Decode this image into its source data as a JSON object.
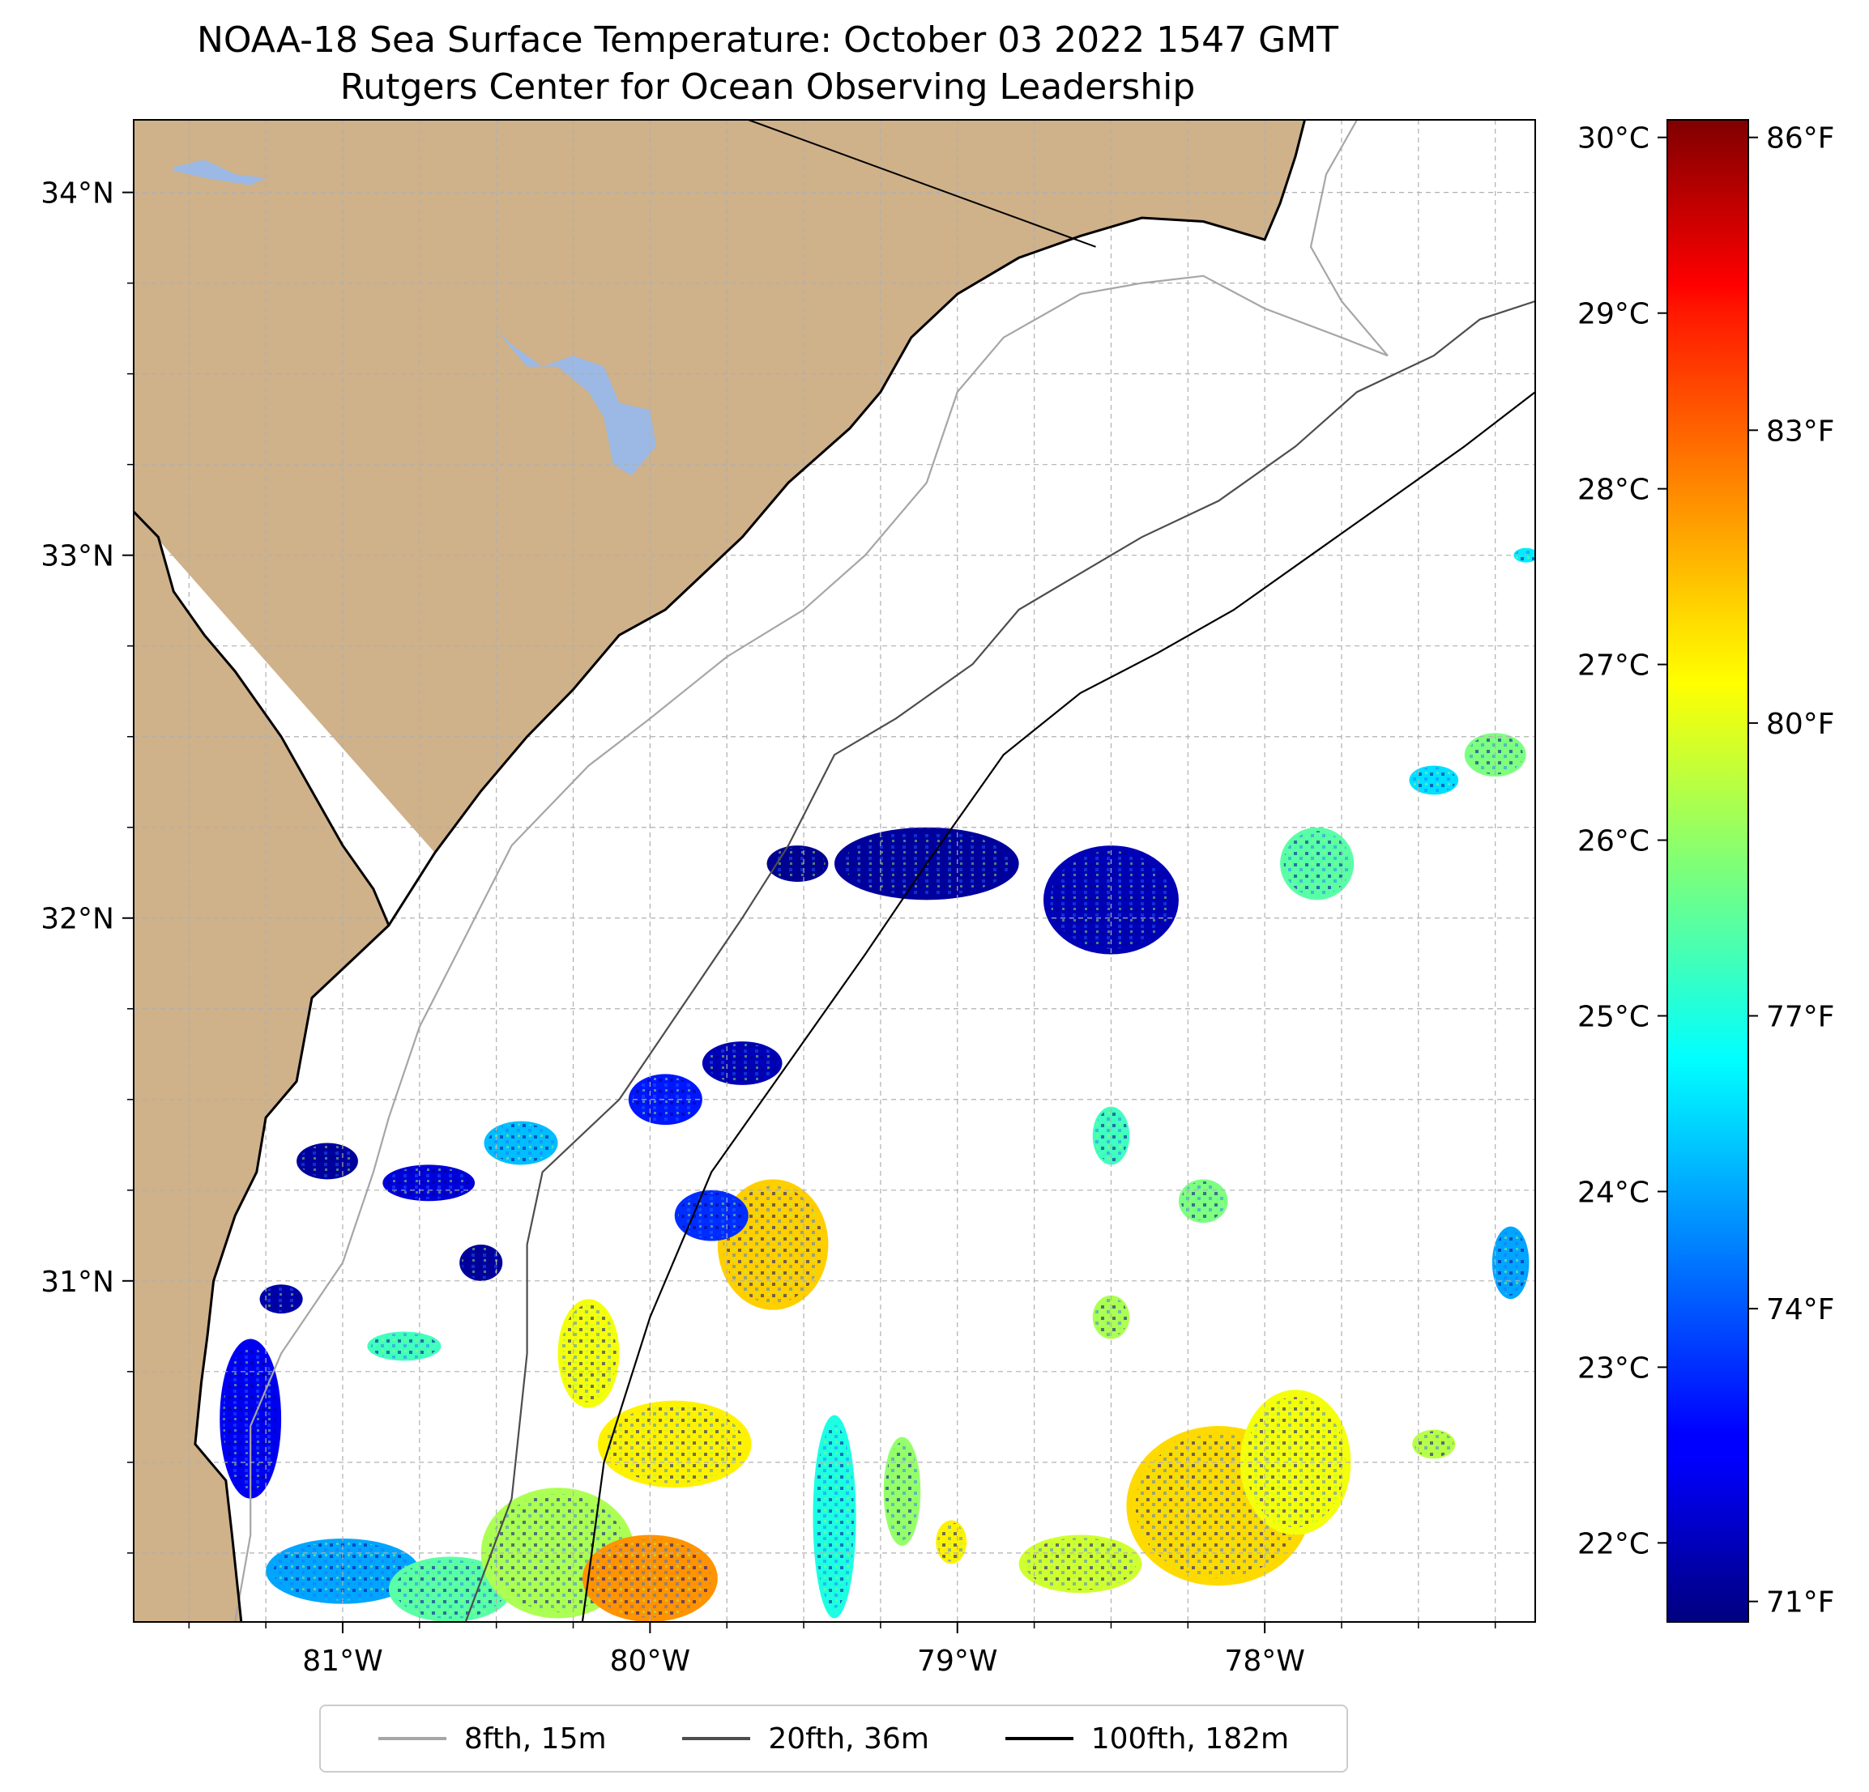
{
  "title": {
    "line1": "NOAA-18 Sea Surface Temperature: October 03 2022 1547 GMT",
    "line2": "Rutgers Center for Ocean Observing Leadership"
  },
  "colors": {
    "land": "#cfb18a",
    "lake": "#9bb9e4",
    "ocean": "#ffffff",
    "coastline": "#000000",
    "grid": "#b0b0b0",
    "contour_8fth": "#a6a6a6",
    "contour_20fth": "#4d4d4d",
    "contour_100fth": "#000000"
  },
  "chart_data": {
    "type": "heatmap",
    "title": "NOAA-18 Sea Surface Temperature: October 03 2022 1547 GMT",
    "subtitle": "Rutgers Center for Ocean Observing Leadership",
    "x_range": [
      -81.68,
      -77.12
    ],
    "y_range": [
      30.06,
      34.2
    ],
    "x_ticks": [
      {
        "value": -81,
        "label": "81°W"
      },
      {
        "value": -80,
        "label": "80°W"
      },
      {
        "value": -79,
        "label": "79°W"
      },
      {
        "value": -78,
        "label": "78°W"
      }
    ],
    "y_ticks": [
      {
        "value": 31,
        "label": "31°N"
      },
      {
        "value": 32,
        "label": "32°N"
      },
      {
        "value": 33,
        "label": "33°N"
      },
      {
        "value": 34,
        "label": "34°N"
      }
    ],
    "grid": "dashed, every 0.25 degree",
    "colormap": "jet",
    "colorbar_range_c": [
      21.55,
      30.1
    ],
    "colorbar_celsius_ticks": [
      {
        "value": 22,
        "label": "22°C"
      },
      {
        "value": 23,
        "label": "23°C"
      },
      {
        "value": 24,
        "label": "24°C"
      },
      {
        "value": 25,
        "label": "25°C"
      },
      {
        "value": 26,
        "label": "26°C"
      },
      {
        "value": 27,
        "label": "27°C"
      },
      {
        "value": 28,
        "label": "28°C"
      },
      {
        "value": 29,
        "label": "29°C"
      },
      {
        "value": 30,
        "label": "30°C"
      }
    ],
    "colorbar_fahrenheit_ticks": [
      {
        "value": 71,
        "label": "71°F"
      },
      {
        "value": 74,
        "label": "74°F"
      },
      {
        "value": 77,
        "label": "77°F"
      },
      {
        "value": 80,
        "label": "80°F"
      },
      {
        "value": 83,
        "label": "83°F"
      },
      {
        "value": 86,
        "label": "86°F"
      }
    ],
    "legend": {
      "placement": "bottom-center",
      "entries": [
        {
          "label": "8fth, 15m",
          "color": "#a6a6a6"
        },
        {
          "label": "20fth, 36m",
          "color": "#4d4d4d"
        },
        {
          "label": "100fth, 182m",
          "color": "#000000"
        }
      ]
    },
    "coastline": [
      [
        -81.68,
        33.12
      ],
      [
        -81.6,
        33.05
      ],
      [
        -81.55,
        32.9
      ],
      [
        -81.45,
        32.78
      ],
      [
        -81.35,
        32.68
      ],
      [
        -81.2,
        32.5
      ],
      [
        -81.1,
        32.35
      ],
      [
        -81.0,
        32.2
      ],
      [
        -80.9,
        32.08
      ],
      [
        -80.85,
        31.98
      ],
      [
        -80.95,
        31.9
      ],
      [
        -81.1,
        31.78
      ],
      [
        -81.15,
        31.55
      ],
      [
        -81.25,
        31.45
      ],
      [
        -81.28,
        31.3
      ],
      [
        -81.35,
        31.18
      ],
      [
        -81.42,
        31.0
      ],
      [
        -81.44,
        30.85
      ],
      [
        -81.46,
        30.72
      ],
      [
        -81.48,
        30.55
      ],
      [
        -81.38,
        30.45
      ],
      [
        -81.36,
        30.3
      ],
      [
        -81.33,
        30.06
      ]
    ],
    "coastline_land_close": [
      [
        -81.68,
        30.06
      ]
    ],
    "coastline_north": [
      [
        -80.85,
        31.98
      ],
      [
        -80.7,
        32.18
      ],
      [
        -80.55,
        32.35
      ],
      [
        -80.4,
        32.5
      ],
      [
        -80.25,
        32.63
      ],
      [
        -80.1,
        32.78
      ],
      [
        -79.95,
        32.85
      ],
      [
        -79.85,
        32.93
      ],
      [
        -79.7,
        33.05
      ],
      [
        -79.55,
        33.2
      ],
      [
        -79.35,
        33.35
      ],
      [
        -79.25,
        33.45
      ],
      [
        -79.15,
        33.6
      ],
      [
        -79.0,
        33.72
      ],
      [
        -78.8,
        33.82
      ],
      [
        -78.6,
        33.88
      ],
      [
        -78.4,
        33.93
      ],
      [
        -78.2,
        33.92
      ],
      [
        -78.0,
        33.87
      ],
      [
        -77.95,
        33.97
      ],
      [
        -77.9,
        34.1
      ],
      [
        -77.87,
        34.2
      ]
    ],
    "state_border": [
      [
        -79.68,
        34.2
      ],
      [
        -78.55,
        33.85
      ]
    ],
    "lakes": [
      {
        "name": "",
        "points": [
          [
            -81.55,
            34.07
          ],
          [
            -81.45,
            34.09
          ],
          [
            -81.35,
            34.05
          ],
          [
            -81.25,
            34.04
          ],
          [
            -81.3,
            34.02
          ],
          [
            -81.45,
            34.04
          ],
          [
            -81.55,
            34.06
          ]
        ]
      },
      {
        "name": "",
        "points": [
          [
            -80.5,
            33.62
          ],
          [
            -80.4,
            33.52
          ],
          [
            -80.3,
            33.52
          ],
          [
            -80.2,
            33.45
          ],
          [
            -80.15,
            33.38
          ],
          [
            -80.12,
            33.25
          ],
          [
            -80.06,
            33.22
          ],
          [
            -79.98,
            33.3
          ],
          [
            -80.0,
            33.4
          ],
          [
            -80.1,
            33.42
          ],
          [
            -80.15,
            33.52
          ],
          [
            -80.25,
            33.55
          ],
          [
            -80.35,
            33.52
          ],
          [
            -80.45,
            33.58
          ]
        ]
      }
    ],
    "contour_8fth": [
      [
        -81.35,
        30.06
      ],
      [
        -81.3,
        30.3
      ],
      [
        -81.3,
        30.6
      ],
      [
        -81.2,
        30.8
      ],
      [
        -81.0,
        31.05
      ],
      [
        -80.9,
        31.3
      ],
      [
        -80.85,
        31.45
      ],
      [
        -80.75,
        31.7
      ],
      [
        -80.6,
        31.95
      ],
      [
        -80.45,
        32.2
      ],
      [
        -80.2,
        32.42
      ],
      [
        -80.0,
        32.55
      ],
      [
        -79.75,
        32.72
      ],
      [
        -79.5,
        32.85
      ],
      [
        -79.3,
        33.0
      ],
      [
        -79.1,
        33.2
      ],
      [
        -79.0,
        33.45
      ],
      [
        -78.85,
        33.6
      ],
      [
        -78.6,
        33.72
      ],
      [
        -78.4,
        33.75
      ],
      [
        -78.2,
        33.77
      ],
      [
        -78.0,
        33.68
      ],
      [
        -77.75,
        33.6
      ],
      [
        -77.6,
        33.55
      ],
      [
        -77.75,
        33.7
      ],
      [
        -77.85,
        33.85
      ],
      [
        -77.8,
        34.05
      ],
      [
        -77.7,
        34.2
      ]
    ],
    "contour_20fth": [
      [
        -80.6,
        30.06
      ],
      [
        -80.45,
        30.4
      ],
      [
        -80.4,
        30.8
      ],
      [
        -80.4,
        31.1
      ],
      [
        -80.35,
        31.3
      ],
      [
        -80.1,
        31.5
      ],
      [
        -79.9,
        31.75
      ],
      [
        -79.7,
        32.0
      ],
      [
        -79.55,
        32.2
      ],
      [
        -79.4,
        32.45
      ],
      [
        -79.2,
        32.55
      ],
      [
        -78.95,
        32.7
      ],
      [
        -78.8,
        32.85
      ],
      [
        -78.6,
        32.95
      ],
      [
        -78.4,
        33.05
      ],
      [
        -78.15,
        33.15
      ],
      [
        -77.9,
        33.3
      ],
      [
        -77.7,
        33.45
      ],
      [
        -77.45,
        33.55
      ],
      [
        -77.3,
        33.65
      ],
      [
        -77.12,
        33.7
      ]
    ],
    "contour_100fth": [
      [
        -80.22,
        30.06
      ],
      [
        -80.15,
        30.5
      ],
      [
        -80.0,
        30.9
      ],
      [
        -79.8,
        31.3
      ],
      [
        -79.55,
        31.6
      ],
      [
        -79.3,
        31.9
      ],
      [
        -79.1,
        32.15
      ],
      [
        -78.85,
        32.45
      ],
      [
        -78.6,
        32.62
      ],
      [
        -78.35,
        32.73
      ],
      [
        -78.1,
        32.85
      ],
      [
        -77.85,
        33.0
      ],
      [
        -77.6,
        33.15
      ],
      [
        -77.35,
        33.3
      ],
      [
        -77.12,
        33.45
      ]
    ],
    "sst_patches": [
      {
        "lon": -81.05,
        "lat": 31.33,
        "rx": 0.1,
        "ry": 0.05,
        "temp_c": 21.8
      },
      {
        "lon": -80.72,
        "lat": 31.27,
        "rx": 0.15,
        "ry": 0.05,
        "temp_c": 22.3
      },
      {
        "lon": -80.42,
        "lat": 31.38,
        "rx": 0.12,
        "ry": 0.06,
        "temp_c": 24.2
      },
      {
        "lon": -81.2,
        "lat": 30.95,
        "rx": 0.07,
        "ry": 0.04,
        "temp_c": 21.9
      },
      {
        "lon": -81.3,
        "lat": 30.62,
        "rx": 0.1,
        "ry": 0.22,
        "temp_c": 22.5
      },
      {
        "lon": -81.0,
        "lat": 30.2,
        "rx": 0.25,
        "ry": 0.09,
        "temp_c": 24.0
      },
      {
        "lon": -80.65,
        "lat": 30.15,
        "rx": 0.2,
        "ry": 0.09,
        "temp_c": 25.5
      },
      {
        "lon": -80.3,
        "lat": 30.25,
        "rx": 0.25,
        "ry": 0.18,
        "temp_c": 26.2
      },
      {
        "lon": -80.0,
        "lat": 30.18,
        "rx": 0.22,
        "ry": 0.12,
        "temp_c": 27.8
      },
      {
        "lon": -79.92,
        "lat": 30.55,
        "rx": 0.25,
        "ry": 0.12,
        "temp_c": 27.0
      },
      {
        "lon": -80.2,
        "lat": 30.8,
        "rx": 0.1,
        "ry": 0.15,
        "temp_c": 26.8
      },
      {
        "lon": -79.6,
        "lat": 31.1,
        "rx": 0.18,
        "ry": 0.18,
        "temp_c": 27.3
      },
      {
        "lon": -79.8,
        "lat": 31.18,
        "rx": 0.12,
        "ry": 0.07,
        "temp_c": 23.0
      },
      {
        "lon": -79.95,
        "lat": 31.5,
        "rx": 0.12,
        "ry": 0.07,
        "temp_c": 22.8
      },
      {
        "lon": -79.7,
        "lat": 31.6,
        "rx": 0.13,
        "ry": 0.06,
        "temp_c": 22.0
      },
      {
        "lon": -80.8,
        "lat": 30.82,
        "rx": 0.12,
        "ry": 0.04,
        "temp_c": 25.3
      },
      {
        "lon": -79.4,
        "lat": 30.35,
        "rx": 0.07,
        "ry": 0.28,
        "temp_c": 25.0
      },
      {
        "lon": -79.18,
        "lat": 30.42,
        "rx": 0.06,
        "ry": 0.15,
        "temp_c": 26.0
      },
      {
        "lon": -79.02,
        "lat": 30.28,
        "rx": 0.05,
        "ry": 0.06,
        "temp_c": 27.0
      },
      {
        "lon": -79.1,
        "lat": 32.15,
        "rx": 0.3,
        "ry": 0.1,
        "temp_c": 21.8
      },
      {
        "lon": -78.5,
        "lat": 32.05,
        "rx": 0.22,
        "ry": 0.15,
        "temp_c": 22.0
      },
      {
        "lon": -79.52,
        "lat": 32.15,
        "rx": 0.1,
        "ry": 0.05,
        "temp_c": 21.7
      },
      {
        "lon": -77.83,
        "lat": 32.15,
        "rx": 0.12,
        "ry": 0.1,
        "temp_c": 25.5
      },
      {
        "lon": -77.45,
        "lat": 32.38,
        "rx": 0.08,
        "ry": 0.04,
        "temp_c": 24.5
      },
      {
        "lon": -77.25,
        "lat": 32.45,
        "rx": 0.1,
        "ry": 0.06,
        "temp_c": 25.8
      },
      {
        "lon": -78.5,
        "lat": 31.4,
        "rx": 0.06,
        "ry": 0.08,
        "temp_c": 25.3
      },
      {
        "lon": -78.2,
        "lat": 31.22,
        "rx": 0.08,
        "ry": 0.06,
        "temp_c": 25.8
      },
      {
        "lon": -78.5,
        "lat": 30.9,
        "rx": 0.06,
        "ry": 0.06,
        "temp_c": 26.2
      },
      {
        "lon": -78.15,
        "lat": 30.38,
        "rx": 0.3,
        "ry": 0.22,
        "temp_c": 27.2
      },
      {
        "lon": -77.9,
        "lat": 30.5,
        "rx": 0.18,
        "ry": 0.2,
        "temp_c": 26.8
      },
      {
        "lon": -78.6,
        "lat": 30.22,
        "rx": 0.2,
        "ry": 0.08,
        "temp_c": 26.5
      },
      {
        "lon": -77.2,
        "lat": 31.05,
        "rx": 0.06,
        "ry": 0.1,
        "temp_c": 24.0
      },
      {
        "lon": -77.45,
        "lat": 30.55,
        "rx": 0.07,
        "ry": 0.04,
        "temp_c": 26.3
      },
      {
        "lon": -80.55,
        "lat": 31.05,
        "rx": 0.07,
        "ry": 0.05,
        "temp_c": 21.8
      },
      {
        "lon": -77.15,
        "lat": 33.0,
        "rx": 0.04,
        "ry": 0.02,
        "temp_c": 24.6
      }
    ]
  }
}
